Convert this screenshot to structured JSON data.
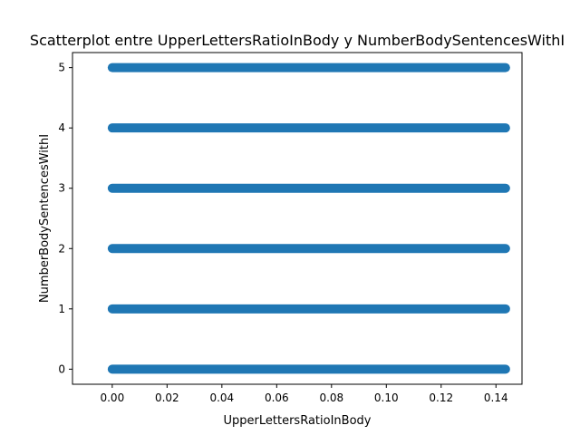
{
  "chart_data": {
    "type": "scatter",
    "title": "Scatterplot entre UpperLettersRatioInBody y NumberBodySentencesWithI",
    "xlabel": "UpperLettersRatioInBody",
    "ylabel": "NumberBodySentencesWithI",
    "xlim": [
      -0.0145,
      0.1495
    ],
    "ylim": [
      -0.25,
      5.25
    ],
    "xticks": [
      0.0,
      0.02,
      0.04,
      0.06,
      0.08,
      0.1,
      0.12,
      0.14
    ],
    "xtick_labels": [
      "0.00",
      "0.02",
      "0.04",
      "0.06",
      "0.08",
      "0.10",
      "0.12",
      "0.14"
    ],
    "yticks": [
      0,
      1,
      2,
      3,
      4,
      5
    ],
    "ytick_labels": [
      "0",
      "1",
      "2",
      "3",
      "4",
      "5"
    ],
    "grid": false,
    "marker_color": "#1f77b4",
    "bands": [
      {
        "y": 0,
        "x_min": 0.0,
        "x_max": 0.1435
      },
      {
        "y": 1,
        "x_min": 0.0,
        "x_max": 0.1435
      },
      {
        "y": 2,
        "x_min": 0.0,
        "x_max": 0.1435
      },
      {
        "y": 3,
        "x_min": 0.0,
        "x_max": 0.1435
      },
      {
        "y": 4,
        "x_min": 0.0,
        "x_max": 0.1435
      },
      {
        "y": 5,
        "x_min": 0.0,
        "x_max": 0.1435
      }
    ]
  }
}
